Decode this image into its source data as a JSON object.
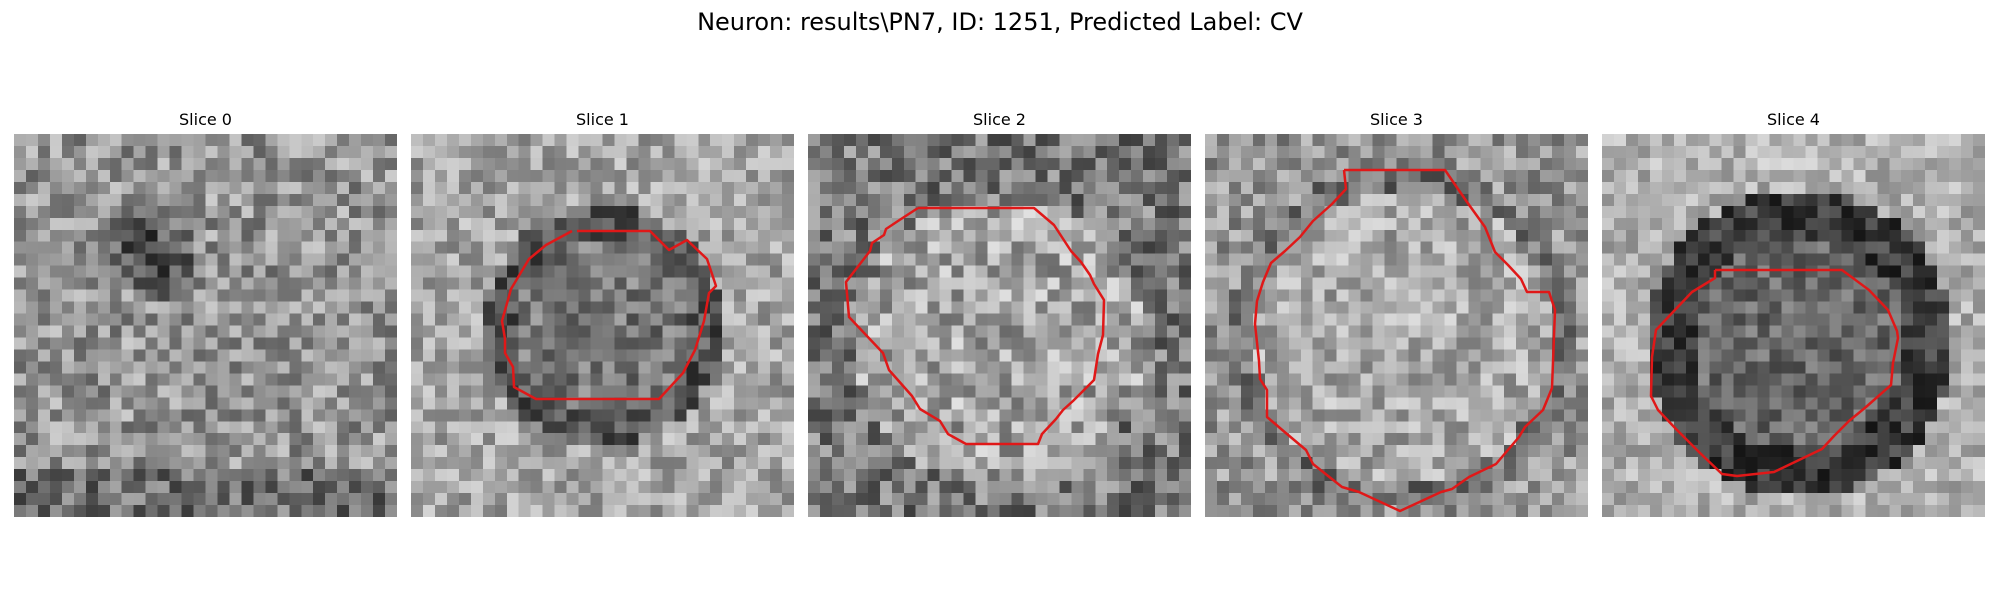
{
  "figure": {
    "title": "Neuron: results\\PN7, ID: 1251, Predicted Label: CV"
  },
  "colors": {
    "contour": "#e01818",
    "background": "#ffffff"
  },
  "panels": [
    {
      "title": "Slice 0",
      "has_contour": false
    },
    {
      "title": "Slice 1",
      "has_contour": true
    },
    {
      "title": "Slice 2",
      "has_contour": true
    },
    {
      "title": "Slice 3",
      "has_contour": true
    },
    {
      "title": "Slice 4",
      "has_contour": true
    }
  ]
}
